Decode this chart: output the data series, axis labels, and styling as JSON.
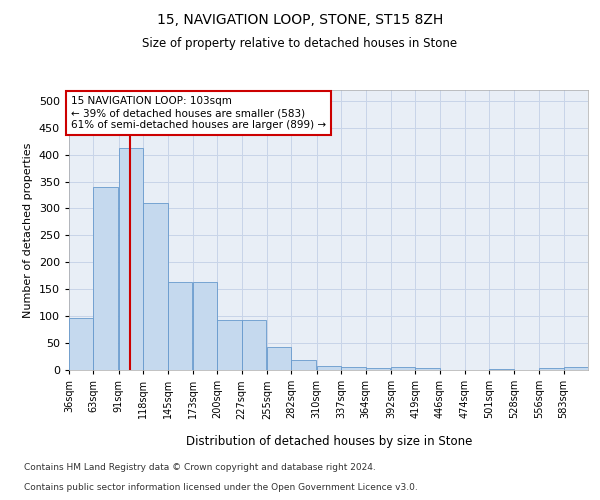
{
  "title1": "15, NAVIGATION LOOP, STONE, ST15 8ZH",
  "title2": "Size of property relative to detached houses in Stone",
  "xlabel": "Distribution of detached houses by size in Stone",
  "ylabel": "Number of detached properties",
  "footnote1": "Contains HM Land Registry data © Crown copyright and database right 2024.",
  "footnote2": "Contains public sector information licensed under the Open Government Licence v3.0.",
  "annotation_line1": "15 NAVIGATION LOOP: 103sqm",
  "annotation_line2": "← 39% of detached houses are smaller (583)",
  "annotation_line3": "61% of semi-detached houses are larger (899) →",
  "bar_color": "#c5d9ee",
  "bar_edge_color": "#6699cc",
  "grid_color": "#c8d4e8",
  "bg_color": "#e8eef6",
  "vline_color": "#cc0000",
  "annotation_box_color": "#cc0000",
  "bins": [
    36,
    63,
    91,
    118,
    145,
    173,
    200,
    227,
    255,
    282,
    310,
    337,
    364,
    392,
    419,
    446,
    474,
    501,
    528,
    556,
    583
  ],
  "bin_labels": [
    "36sqm",
    "63sqm",
    "91sqm",
    "118sqm",
    "145sqm",
    "173sqm",
    "200sqm",
    "227sqm",
    "255sqm",
    "282sqm",
    "310sqm",
    "337sqm",
    "364sqm",
    "392sqm",
    "419sqm",
    "446sqm",
    "474sqm",
    "501sqm",
    "528sqm",
    "556sqm",
    "583sqm"
  ],
  "values": [
    97,
    340,
    413,
    310,
    163,
    163,
    93,
    93,
    42,
    18,
    8,
    5,
    4,
    5,
    3,
    0,
    0,
    2,
    0,
    3,
    5
  ],
  "vline_x": 103,
  "ylim": [
    0,
    520
  ],
  "yticks": [
    0,
    50,
    100,
    150,
    200,
    250,
    300,
    350,
    400,
    450,
    500
  ]
}
